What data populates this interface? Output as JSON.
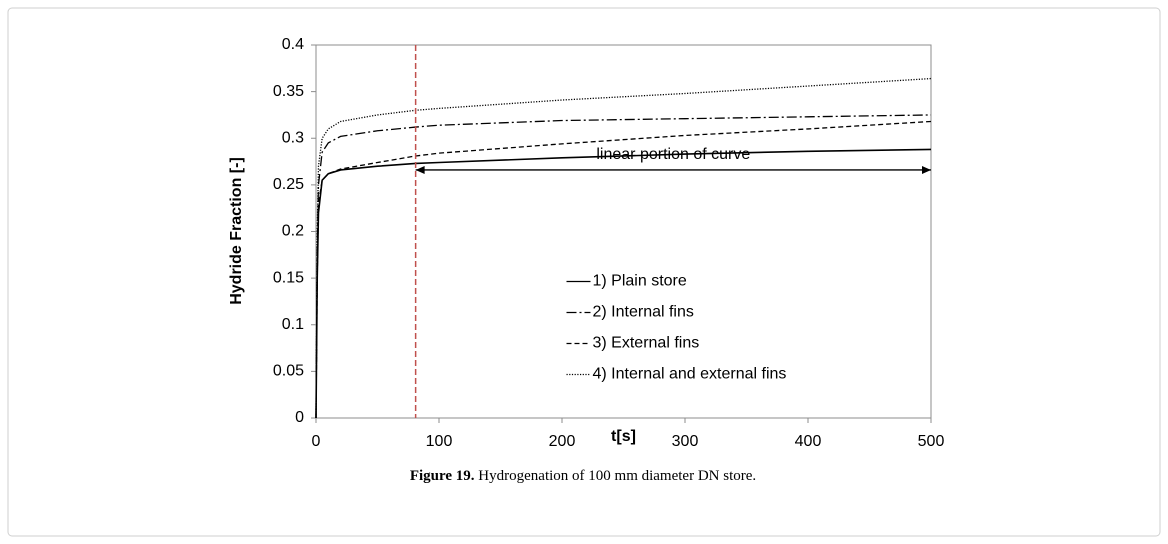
{
  "chart_data": {
    "type": "line",
    "ylabel": "Hydride Fraction [-]",
    "xlabel": "t[s]",
    "x": [
      0,
      1,
      2,
      5,
      10,
      20,
      50,
      81,
      100,
      200,
      300,
      400,
      500
    ],
    "series": [
      {
        "name": "1) Plain store",
        "color": "#000000",
        "dash": "solid",
        "values": [
          0,
          0.15,
          0.22,
          0.255,
          0.262,
          0.266,
          0.27,
          0.273,
          0.274,
          0.279,
          0.283,
          0.286,
          0.288
        ]
      },
      {
        "name": "2) Internal fins",
        "color": "#000000",
        "dash": "dashdot",
        "values": [
          0,
          0.18,
          0.25,
          0.285,
          0.295,
          0.302,
          0.308,
          0.312,
          0.314,
          0.319,
          0.321,
          0.323,
          0.325
        ]
      },
      {
        "name": "3) External fins",
        "color": "#000000",
        "dash": "dashed",
        "values": [
          0,
          0.15,
          0.23,
          0.255,
          0.262,
          0.267,
          0.274,
          0.281,
          0.284,
          0.294,
          0.303,
          0.31,
          0.318
        ]
      },
      {
        "name": "4) Internal and external fins",
        "color": "#000000",
        "dash": "dotted",
        "values": [
          0,
          0.2,
          0.27,
          0.3,
          0.31,
          0.318,
          0.325,
          0.33,
          0.332,
          0.341,
          0.348,
          0.356,
          0.364
        ]
      }
    ],
    "xlim": [
      0,
      500
    ],
    "xticks": [
      0,
      100,
      200,
      300,
      400,
      500
    ],
    "ylim": [
      0,
      0.4
    ],
    "yticks": [
      0,
      0.05,
      0.1,
      0.15,
      0.2,
      0.25,
      0.3,
      0.35,
      0.4
    ],
    "legend": "center",
    "vline": {
      "x": 81,
      "color": "#c0504d"
    },
    "annotation": {
      "text": "linear portion of curve",
      "x_start": 81,
      "x_end": 500,
      "y": 0.266
    }
  },
  "caption_label": "Figure 19.",
  "caption_text": "Hydrogenation of 100 mm diameter DN store."
}
